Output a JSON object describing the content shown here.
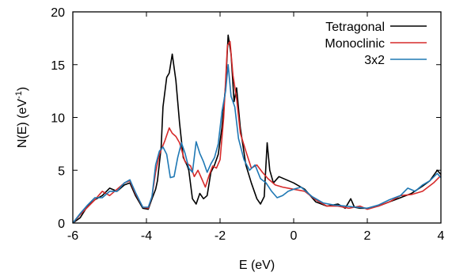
{
  "chart_data": {
    "type": "line",
    "xlabel": "E (eV)",
    "ylabel_base": "N(E) (eV",
    "ylabel_sup": "-1",
    "ylabel_close": ")",
    "xlim": [
      -6,
      4
    ],
    "ylim": [
      0,
      20
    ],
    "xticks": [
      -6,
      -4,
      -2,
      0,
      2,
      4
    ],
    "yticks": [
      0,
      5,
      10,
      15,
      20
    ],
    "xtick_labels": [
      "-6",
      "-4",
      "-2",
      "0",
      "2",
      "4"
    ],
    "ytick_labels": [
      "0",
      "5",
      "10",
      "15",
      "20"
    ],
    "grid": false,
    "legend_position": "top-right",
    "series": [
      {
        "name": "Tetragonal",
        "color": "#000000",
        "points": [
          [
            -6,
            0
          ],
          [
            -5.8,
            0.5
          ],
          [
            -5.6,
            1.6
          ],
          [
            -5.4,
            2.2
          ],
          [
            -5.2,
            2.6
          ],
          [
            -5.0,
            3.3
          ],
          [
            -4.8,
            3.0
          ],
          [
            -4.6,
            3.6
          ],
          [
            -4.45,
            3.8
          ],
          [
            -4.3,
            2.6
          ],
          [
            -4.1,
            1.4
          ],
          [
            -3.95,
            1.3
          ],
          [
            -3.85,
            2.3
          ],
          [
            -3.75,
            3.2
          ],
          [
            -3.7,
            4.0
          ],
          [
            -3.6,
            7.2
          ],
          [
            -3.55,
            11.0
          ],
          [
            -3.45,
            13.8
          ],
          [
            -3.38,
            14.2
          ],
          [
            -3.3,
            16.0
          ],
          [
            -3.2,
            13.5
          ],
          [
            -3.1,
            9.5
          ],
          [
            -3.0,
            6.2
          ],
          [
            -2.9,
            5.5
          ],
          [
            -2.85,
            5.0
          ],
          [
            -2.75,
            2.3
          ],
          [
            -2.65,
            1.8
          ],
          [
            -2.55,
            2.8
          ],
          [
            -2.45,
            2.3
          ],
          [
            -2.35,
            2.6
          ],
          [
            -2.25,
            4.8
          ],
          [
            -2.15,
            5.5
          ],
          [
            -2.05,
            6.5
          ],
          [
            -1.95,
            9.0
          ],
          [
            -1.85,
            13.0
          ],
          [
            -1.78,
            17.8
          ],
          [
            -1.7,
            16.0
          ],
          [
            -1.62,
            11.5
          ],
          [
            -1.55,
            12.8
          ],
          [
            -1.45,
            9.0
          ],
          [
            -1.3,
            5.5
          ],
          [
            -1.15,
            3.8
          ],
          [
            -1.0,
            2.3
          ],
          [
            -0.9,
            1.8
          ],
          [
            -0.8,
            2.5
          ],
          [
            -0.72,
            7.6
          ],
          [
            -0.65,
            5.0
          ],
          [
            -0.55,
            3.8
          ],
          [
            -0.4,
            4.4
          ],
          [
            -0.2,
            4.1
          ],
          [
            0.0,
            3.8
          ],
          [
            0.3,
            3.2
          ],
          [
            0.6,
            2.0
          ],
          [
            0.9,
            1.6
          ],
          [
            1.2,
            1.8
          ],
          [
            1.4,
            1.4
          ],
          [
            1.55,
            2.3
          ],
          [
            1.65,
            1.5
          ],
          [
            1.8,
            1.4
          ],
          [
            2.0,
            1.4
          ],
          [
            2.3,
            1.6
          ],
          [
            2.6,
            2.0
          ],
          [
            2.9,
            2.4
          ],
          [
            3.2,
            2.8
          ],
          [
            3.5,
            3.5
          ],
          [
            3.7,
            4.0
          ],
          [
            3.9,
            5.0
          ],
          [
            4.0,
            4.6
          ]
        ]
      },
      {
        "name": "Monoclinic",
        "color": "#d62a2a",
        "points": [
          [
            -6,
            0
          ],
          [
            -5.8,
            0.8
          ],
          [
            -5.6,
            1.5
          ],
          [
            -5.4,
            2.2
          ],
          [
            -5.2,
            3.0
          ],
          [
            -5.0,
            2.6
          ],
          [
            -4.8,
            3.2
          ],
          [
            -4.6,
            3.8
          ],
          [
            -4.45,
            4.0
          ],
          [
            -4.3,
            2.8
          ],
          [
            -4.1,
            1.5
          ],
          [
            -3.95,
            1.4
          ],
          [
            -3.85,
            2.5
          ],
          [
            -3.75,
            4.8
          ],
          [
            -3.65,
            6.5
          ],
          [
            -3.5,
            7.8
          ],
          [
            -3.38,
            9.0
          ],
          [
            -3.3,
            8.5
          ],
          [
            -3.2,
            8.2
          ],
          [
            -3.1,
            7.6
          ],
          [
            -2.95,
            5.8
          ],
          [
            -2.8,
            5.4
          ],
          [
            -2.7,
            4.4
          ],
          [
            -2.6,
            5.0
          ],
          [
            -2.5,
            4.2
          ],
          [
            -2.4,
            3.4
          ],
          [
            -2.3,
            4.5
          ],
          [
            -2.2,
            5.4
          ],
          [
            -2.1,
            5.2
          ],
          [
            -2.0,
            6.0
          ],
          [
            -1.9,
            10.0
          ],
          [
            -1.8,
            16.8
          ],
          [
            -1.73,
            17.2
          ],
          [
            -1.65,
            14.0
          ],
          [
            -1.55,
            11.8
          ],
          [
            -1.45,
            8.5
          ],
          [
            -1.3,
            6.8
          ],
          [
            -1.15,
            5.2
          ],
          [
            -1.0,
            5.5
          ],
          [
            -0.85,
            4.8
          ],
          [
            -0.7,
            4.2
          ],
          [
            -0.5,
            3.6
          ],
          [
            -0.3,
            3.4
          ],
          [
            0.0,
            3.2
          ],
          [
            0.3,
            3.0
          ],
          [
            0.6,
            2.2
          ],
          [
            0.9,
            1.6
          ],
          [
            1.2,
            1.6
          ],
          [
            1.5,
            1.4
          ],
          [
            1.8,
            1.6
          ],
          [
            2.0,
            1.3
          ],
          [
            2.3,
            1.6
          ],
          [
            2.6,
            2.0
          ],
          [
            2.9,
            2.6
          ],
          [
            3.2,
            2.7
          ],
          [
            3.5,
            3.0
          ],
          [
            3.8,
            3.8
          ],
          [
            4.0,
            4.5
          ]
        ]
      },
      {
        "name": "3x2",
        "color": "#1f78b4",
        "points": [
          [
            -6,
            0
          ],
          [
            -5.8,
            0.9
          ],
          [
            -5.6,
            1.7
          ],
          [
            -5.4,
            2.4
          ],
          [
            -5.2,
            2.4
          ],
          [
            -5.0,
            3.0
          ],
          [
            -4.8,
            3.0
          ],
          [
            -4.6,
            3.8
          ],
          [
            -4.45,
            4.1
          ],
          [
            -4.3,
            2.9
          ],
          [
            -4.1,
            1.5
          ],
          [
            -3.95,
            1.5
          ],
          [
            -3.85,
            2.5
          ],
          [
            -3.75,
            5.5
          ],
          [
            -3.65,
            6.8
          ],
          [
            -3.55,
            7.2
          ],
          [
            -3.45,
            6.5
          ],
          [
            -3.35,
            4.3
          ],
          [
            -3.25,
            4.4
          ],
          [
            -3.15,
            6.2
          ],
          [
            -3.05,
            7.6
          ],
          [
            -2.95,
            6.6
          ],
          [
            -2.85,
            5.2
          ],
          [
            -2.75,
            4.8
          ],
          [
            -2.65,
            7.7
          ],
          [
            -2.55,
            6.6
          ],
          [
            -2.45,
            5.8
          ],
          [
            -2.35,
            4.8
          ],
          [
            -2.25,
            5.6
          ],
          [
            -2.15,
            6.2
          ],
          [
            -2.05,
            7.5
          ],
          [
            -1.95,
            10.5
          ],
          [
            -1.85,
            12.5
          ],
          [
            -1.78,
            15.0
          ],
          [
            -1.7,
            12.0
          ],
          [
            -1.6,
            11.0
          ],
          [
            -1.5,
            8.0
          ],
          [
            -1.35,
            6.0
          ],
          [
            -1.2,
            5.0
          ],
          [
            -1.05,
            5.5
          ],
          [
            -0.9,
            4.2
          ],
          [
            -0.75,
            3.8
          ],
          [
            -0.6,
            3.0
          ],
          [
            -0.45,
            2.4
          ],
          [
            -0.3,
            2.6
          ],
          [
            -0.15,
            3.0
          ],
          [
            0.0,
            3.2
          ],
          [
            0.2,
            3.4
          ],
          [
            0.5,
            2.5
          ],
          [
            0.8,
            1.9
          ],
          [
            1.1,
            1.7
          ],
          [
            1.4,
            1.6
          ],
          [
            1.7,
            1.5
          ],
          [
            2.0,
            1.4
          ],
          [
            2.3,
            1.7
          ],
          [
            2.6,
            2.2
          ],
          [
            2.9,
            2.6
          ],
          [
            3.1,
            3.3
          ],
          [
            3.3,
            3.0
          ],
          [
            3.5,
            3.6
          ],
          [
            3.7,
            4.0
          ],
          [
            3.9,
            4.7
          ],
          [
            4.0,
            4.3
          ]
        ]
      }
    ]
  }
}
